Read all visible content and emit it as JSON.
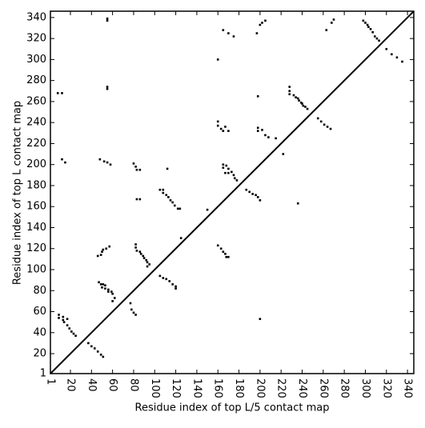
{
  "chart_data": {
    "type": "scatter",
    "x_label": "Residue index of top L/5 contact map",
    "y_label": "Residue index of top L contact map",
    "xlim": [
      1,
      346
    ],
    "ylim": [
      1,
      346
    ],
    "xticks": [
      1,
      20,
      40,
      60,
      80,
      100,
      120,
      140,
      160,
      180,
      200,
      220,
      240,
      260,
      280,
      300,
      320,
      340
    ],
    "yticks": [
      1,
      20,
      40,
      60,
      80,
      100,
      120,
      140,
      160,
      180,
      200,
      220,
      240,
      260,
      280,
      300,
      320,
      340
    ],
    "diagonal": true,
    "color": "#000000",
    "marker": "square",
    "x": [
      8,
      12,
      55,
      55,
      55,
      55,
      160,
      165,
      170,
      175,
      197,
      200,
      202,
      205,
      263,
      268,
      270,
      298,
      300,
      302,
      303,
      305,
      307,
      309,
      311,
      313,
      320,
      325,
      330,
      335,
      198,
      228,
      228,
      228,
      232,
      234,
      236,
      237,
      239,
      240,
      241,
      243,
      245,
      255,
      258,
      261,
      264,
      267,
      160,
      160,
      163,
      165,
      167,
      170,
      198,
      198,
      202,
      205,
      208,
      215,
      222,
      165,
      165,
      168,
      170,
      173,
      175,
      176,
      178,
      167,
      170,
      187,
      190,
      193,
      196,
      198,
      200,
      150,
      160,
      163,
      165,
      167,
      168,
      170,
      200,
      236,
      12,
      15,
      48,
      52,
      55,
      58,
      80,
      82,
      83,
      86,
      83,
      86,
      112,
      105,
      108,
      108,
      111,
      113,
      115,
      117,
      119,
      122,
      124,
      125,
      46,
      49,
      50,
      51,
      54,
      57,
      82,
      82,
      83,
      86,
      87,
      89,
      90,
      92,
      93,
      95,
      93,
      105,
      108,
      111,
      114,
      117,
      120,
      120,
      47,
      49,
      51,
      50,
      53,
      53,
      56,
      56,
      59,
      60,
      62,
      60,
      77,
      78,
      80,
      82,
      9,
      9,
      13,
      14,
      17,
      19,
      21,
      23,
      25,
      17,
      13,
      37,
      40,
      43,
      46,
      49,
      51
    ],
    "values": [
      268,
      268,
      337,
      339,
      272,
      274,
      300,
      328,
      325,
      322,
      325,
      333,
      335,
      337,
      328,
      335,
      338,
      337,
      335,
      333,
      331,
      329,
      326,
      322,
      320,
      318,
      310,
      305,
      302,
      298,
      265,
      274,
      270,
      267,
      266,
      264,
      263,
      261,
      259,
      258,
      256,
      255,
      253,
      244,
      241,
      238,
      236,
      234,
      241,
      237,
      234,
      232,
      236,
      232,
      235,
      232,
      233,
      228,
      226,
      225,
      210,
      200,
      197,
      199,
      196,
      193,
      190,
      187,
      185,
      192,
      192,
      176,
      174,
      172,
      171,
      169,
      166,
      157,
      123,
      120,
      117,
      115,
      112,
      112,
      53,
      163,
      205,
      202,
      205,
      203,
      202,
      200,
      201,
      198,
      195,
      195,
      167,
      167,
      196,
      176,
      176,
      173,
      171,
      169,
      166,
      164,
      161,
      158,
      158,
      130,
      113,
      114,
      117,
      119,
      120,
      122,
      124,
      121,
      118,
      117,
      115,
      113,
      111,
      109,
      107,
      105,
      103,
      94,
      92,
      91,
      89,
      86,
      84,
      82,
      88,
      86,
      86,
      83,
      85,
      82,
      81,
      79,
      79,
      77,
      73,
      70,
      68,
      62,
      59,
      57,
      57,
      54,
      52,
      50,
      47,
      44,
      41,
      39,
      37,
      53,
      55,
      30,
      27,
      25,
      22,
      19,
      17
    ]
  }
}
